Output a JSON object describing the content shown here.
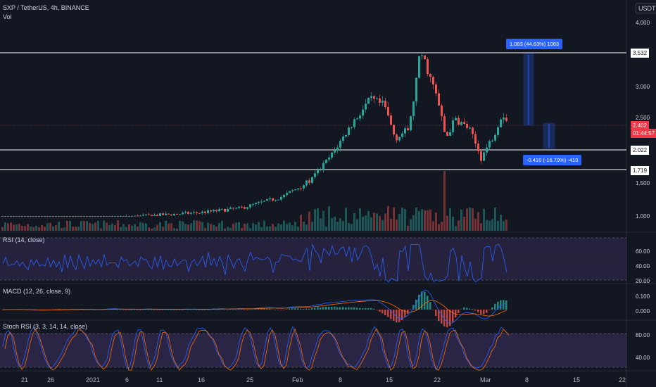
{
  "header": {
    "symbol": "SXP / TetherUS, 4h, BINANCE",
    "vol_label": "Vol",
    "quote_currency": "USDT"
  },
  "price_axis": {
    "labels": [
      "4.000",
      "3.000",
      "2.500",
      "1.500",
      "1.000"
    ],
    "values": [
      4.0,
      3.0,
      2.5,
      1.5,
      1.0
    ],
    "levels": [
      {
        "label": "3.532",
        "value": 3.532
      },
      {
        "label": "2.022",
        "value": 2.022
      },
      {
        "label": "1.719",
        "value": 1.719
      }
    ],
    "current": {
      "price": "2.402",
      "countdown": "01:44:57",
      "value": 2.402
    }
  },
  "measures": [
    {
      "text": "1.083 (44.63%) 1083"
    },
    {
      "text": "-0.410 (-16.79%) -410"
    }
  ],
  "rsi": {
    "title": "RSI (14, close)",
    "ticks": [
      "60.00",
      "40.00",
      "20.00"
    ]
  },
  "macd": {
    "title": "MACD (12, 26, close, 9)",
    "ticks": [
      "0.100",
      "0.000"
    ]
  },
  "stoch": {
    "title": "Stoch RSI (3, 3, 14, 14, close)",
    "ticks": [
      "80.00",
      "40.00"
    ]
  },
  "time_axis": [
    "21",
    "26",
    "2021",
    "6",
    "11",
    "16",
    "25",
    "Feb",
    "8",
    "15",
    "22",
    "Mar",
    "8",
    "15",
    "22"
  ],
  "colors": {
    "background": "#131722",
    "up": "#26a69a",
    "down": "#ef5350",
    "rsi_line": "#2962ff",
    "rsi_fill": "#7e57c2",
    "macd_line": "#2962ff",
    "signal_line": "#ff6d00",
    "stoch_k": "#2962ff",
    "stoch_d": "#ff6d00",
    "current_price": "#f23645",
    "measure": "#2962ff"
  }
}
